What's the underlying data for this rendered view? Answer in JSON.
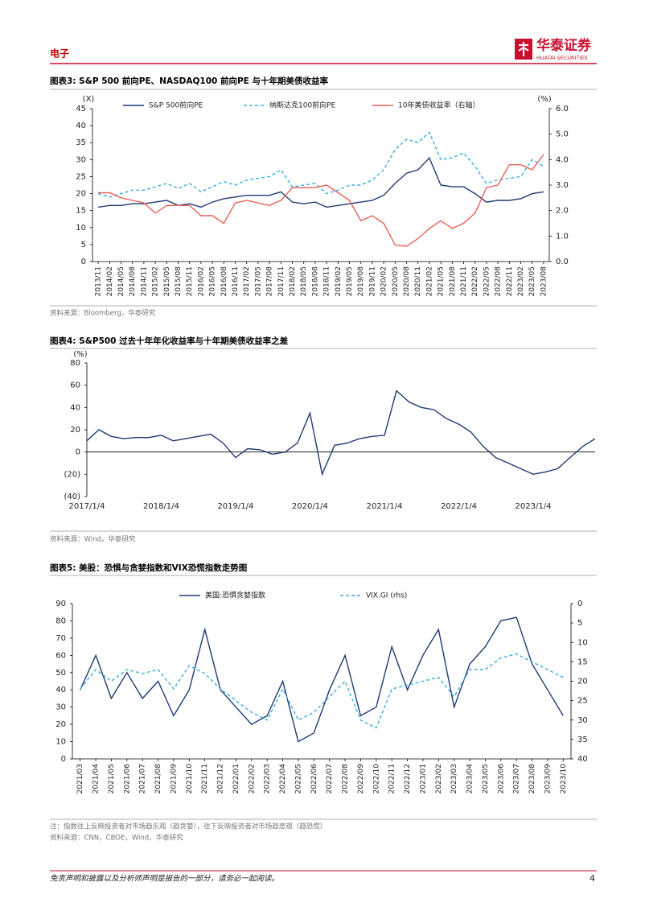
{
  "header": {
    "section": "电子",
    "logo": "华泰证券",
    "logo_en": "HUATAI SECURITIES"
  },
  "chart_data": [
    {
      "type": "line",
      "title": "图表3:  S&P 500 前向PE、NASDAQ100 前向PE 与十年期美债收益率",
      "y_label": "(X)",
      "y2_label": "(%)",
      "categories": [
        "2013/11",
        "2014/02",
        "2014/05",
        "2014/08",
        "2014/11",
        "2015/02",
        "2015/05",
        "2015/08",
        "2015/11",
        "2016/02",
        "2016/05",
        "2016/08",
        "2016/11",
        "2017/02",
        "2017/05",
        "2017/08",
        "2017/11",
        "2018/02",
        "2018/05",
        "2018/08",
        "2018/11",
        "2019/02",
        "2019/05",
        "2019/08",
        "2019/11",
        "2020/02",
        "2020/05",
        "2020/08",
        "2020/11",
        "2021/02",
        "2021/05",
        "2021/08",
        "2021/11",
        "2022/02",
        "2022/05",
        "2022/08",
        "2022/11",
        "2023/02",
        "2023/05",
        "2023/08"
      ],
      "series": [
        {
          "name": "S&P 500前向PE",
          "color": "#1f3a73",
          "style": "solid",
          "values": [
            16,
            16.5,
            16.5,
            17,
            17,
            17.5,
            18,
            16.5,
            17,
            16,
            17.5,
            18.5,
            19,
            19.5,
            19.5,
            19.5,
            20.5,
            17.5,
            17,
            17.5,
            16,
            16.5,
            17,
            17.5,
            18,
            19.5,
            23,
            26,
            27,
            30.5,
            22.5,
            22,
            22,
            20,
            17.5,
            18,
            18,
            18.5,
            20,
            20.5
          ]
        },
        {
          "name": "纳斯达克100前向PE",
          "color": "#3aaee0",
          "style": "dashed",
          "values": [
            20,
            19,
            20,
            21,
            21,
            22,
            23,
            21.5,
            23,
            20.5,
            22,
            23.5,
            22.5,
            24,
            24.5,
            25,
            27,
            22,
            22.5,
            23,
            20,
            21,
            22.5,
            22.5,
            24,
            27,
            33,
            36,
            35,
            38,
            30,
            30.5,
            32,
            28,
            23,
            24,
            24.5,
            25,
            30,
            28
          ]
        },
        {
          "name": "10年美债收益率（右轴）",
          "color": "#e8605a",
          "style": "solid",
          "axis": "y2",
          "values": [
            2.7,
            2.7,
            2.5,
            2.4,
            2.3,
            1.9,
            2.2,
            2.2,
            2.2,
            1.8,
            1.8,
            1.5,
            2.3,
            2.4,
            2.3,
            2.2,
            2.4,
            2.9,
            2.9,
            2.9,
            3.0,
            2.7,
            2.4,
            1.6,
            1.8,
            1.5,
            0.65,
            0.6,
            0.9,
            1.3,
            1.6,
            1.3,
            1.5,
            1.9,
            2.9,
            3.0,
            3.8,
            3.8,
            3.6,
            4.2
          ]
        }
      ],
      "ylim": [
        0,
        45
      ],
      "yticks": [
        0,
        5,
        10,
        15,
        20,
        25,
        30,
        35,
        40,
        45
      ],
      "y2lim": [
        0,
        6
      ],
      "y2ticks": [
        {
          "value": 0,
          "label": "0.0"
        },
        {
          "value": 1,
          "label": "1.0"
        },
        {
          "value": 2,
          "label": "2.0"
        },
        {
          "value": 3,
          "label": "3.0"
        },
        {
          "value": 4,
          "label": "4.0"
        },
        {
          "value": 5,
          "label": "5.0"
        },
        {
          "value": 6,
          "label": "6.0"
        }
      ],
      "source": "资料来源：Bloomberg，华泰研究"
    },
    {
      "type": "line",
      "title": "图表4:  S&P500 过去十年年化收益率与十年期美债收益率之差",
      "y_label": "(%)",
      "x": [
        "2017/1/4",
        "2017/3/4",
        "2017/5/4",
        "2017/7/4",
        "2017/9/4",
        "2017/11/4",
        "2018/1/4",
        "2018/3/4",
        "2018/5/4",
        "2018/7/4",
        "2018/9/4",
        "2018/11/4",
        "2019/1/4",
        "2019/3/4",
        "2019/5/4",
        "2019/7/4",
        "2019/9/4",
        "2019/11/4",
        "2020/1/4",
        "2020/3/4",
        "2020/5/4",
        "2020/7/4",
        "2020/9/4",
        "2020/11/4",
        "2021/1/4",
        "2021/3/4",
        "2021/5/4",
        "2021/7/4",
        "2021/9/4",
        "2021/11/4",
        "2022/1/4",
        "2022/3/4",
        "2022/5/4",
        "2022/7/4",
        "2022/9/4",
        "2022/11/4",
        "2023/1/4",
        "2023/3/4",
        "2023/5/4",
        "2023/7/4",
        "2023/9/4",
        "2023/11/4"
      ],
      "series": [
        {
          "name": null,
          "color": "#1f3a73",
          "style": "solid",
          "values": [
            10,
            20,
            14,
            12,
            13,
            13,
            15,
            10,
            12,
            14,
            16,
            8,
            -5,
            3,
            2,
            -2,
            0,
            8,
            35,
            -20,
            6,
            8,
            12,
            14,
            15,
            55,
            45,
            40,
            38,
            30,
            25,
            18,
            5,
            -5,
            -10,
            -15,
            -20,
            -18,
            -15,
            -5,
            5,
            12
          ]
        }
      ],
      "xlim": [
        "2017/1/4",
        "2023/11/4"
      ],
      "xticks": [
        "2017/1/4",
        "2018/1/4",
        "2019/1/4",
        "2020/1/4",
        "2021/1/4",
        "2022/1/4",
        "2023/1/4"
      ],
      "ylim": [
        -40,
        80
      ],
      "yticks": [
        {
          "value": -40,
          "label": "(40)"
        },
        {
          "value": -20,
          "label": "(20)"
        },
        0,
        20,
        40,
        60,
        80
      ],
      "source": "资料来源：Wind，华泰研究"
    },
    {
      "type": "line",
      "title": "图表5:  美股：恐惧与贪婪指数和VIX恐慌指数走势图",
      "categories": [
        "2021/03",
        "2021/04",
        "2021/05",
        "2021/06",
        "2021/07",
        "2021/08",
        "2021/09",
        "2021/10",
        "2021/11",
        "2021/12",
        "2022/01",
        "2022/02",
        "2022/03",
        "2022/04",
        "2022/05",
        "2022/06",
        "2022/07",
        "2022/08",
        "2022/09",
        "2022/10",
        "2022/11",
        "2022/12",
        "2023/01",
        "2023/02",
        "2023/03",
        "2023/04",
        "2023/05",
        "2023/06",
        "2023/07",
        "2023/08",
        "2023/09",
        "2023/10"
      ],
      "series": [
        {
          "name": "美国:恐惧贪婪指数",
          "color": "#1f3a73",
          "style": "solid",
          "values": [
            40,
            60,
            35,
            50,
            35,
            45,
            25,
            40,
            75,
            40,
            30,
            20,
            25,
            45,
            10,
            15,
            40,
            60,
            25,
            30,
            65,
            40,
            60,
            75,
            30,
            55,
            65,
            80,
            82,
            55,
            40,
            25
          ]
        },
        {
          "name": "VIX.GI (rhs)",
          "color": "#3aaee0",
          "style": "dashed",
          "axis": "y2",
          "values": [
            22,
            17,
            20,
            17,
            18,
            17,
            22,
            16,
            18,
            22,
            25,
            28,
            30,
            22,
            30,
            28,
            24,
            20,
            30,
            32,
            22,
            21,
            20,
            19,
            24,
            17,
            17,
            14,
            13,
            15,
            17,
            19
          ]
        }
      ],
      "ylim": [
        0,
        90
      ],
      "yticks": [
        0,
        10,
        20,
        30,
        40,
        50,
        60,
        70,
        80,
        90
      ],
      "y2lim": [
        0,
        40
      ],
      "y2ticks": [
        0,
        5,
        10,
        15,
        20,
        25,
        30,
        35,
        40
      ],
      "y2_inverted": true,
      "note": "注：指数往上反映投资者对市场趋乐观（趋贪婪），往下反映投资者对市场趋悲观（趋恐慌）",
      "source": "资料来源：CNN，CBOE，Wind，华泰研究"
    }
  ],
  "footer": {
    "disclaimer": "免责声明和披露以及分析师声明是报告的一部分，请务必一起阅读。",
    "page": "4"
  }
}
